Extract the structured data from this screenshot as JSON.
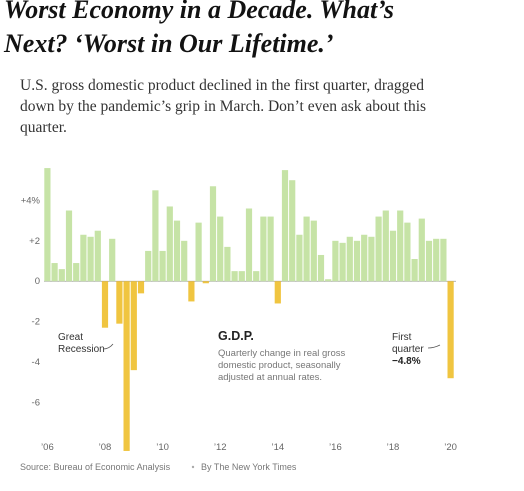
{
  "headline": [
    "Worst Economy in a Decade. What’s",
    "Next? ‘Worst in Our Lifetime.’"
  ],
  "summary": [
    "U.S. gross domestic product declined in the first quarter, dragged",
    "down by the pandemic’s grip in March. Don’t even ask about this",
    "quarter."
  ],
  "chart_data": {
    "type": "bar",
    "title": "G.D.P.",
    "subtitle": [
      "Quarterly change in real gross",
      "domestic product, seasonally",
      "adjusted at annual rates."
    ],
    "annotations": [
      [
        "Great",
        "Recession"
      ],
      [
        "First",
        "quarter"
      ]
    ],
    "categories": [
      "’06",
      null,
      null,
      null,
      null,
      null,
      null,
      null,
      "’08",
      null,
      null,
      null,
      null,
      null,
      null,
      null,
      "’10",
      null,
      null,
      null,
      null,
      null,
      null,
      null,
      "’12",
      null,
      null,
      null,
      null,
      null,
      null,
      null,
      "’14",
      null,
      null,
      null,
      null,
      null,
      null,
      null,
      "’16",
      null,
      null,
      null,
      null,
      null,
      null,
      null,
      "’18",
      null,
      null,
      null,
      null,
      null,
      null,
      null,
      "’20"
    ],
    "values": [
      5.6,
      0.9,
      0.6,
      3.5,
      0.9,
      2.3,
      2.2,
      2.5,
      -2.3,
      2.1,
      -2.1,
      -8.4,
      -4.4,
      -0.6,
      1.5,
      4.5,
      1.5,
      3.7,
      3.0,
      2.0,
      -1.0,
      2.9,
      -0.1,
      4.7,
      3.2,
      1.7,
      0.5,
      0.5,
      3.6,
      0.5,
      3.2,
      3.2,
      -1.1,
      5.5,
      5.0,
      2.3,
      3.2,
      3.0,
      1.3,
      0.1,
      2.0,
      1.9,
      2.2,
      2.0,
      2.3,
      2.2,
      3.2,
      3.5,
      2.5,
      3.5,
      2.9,
      1.1,
      3.1,
      2.0,
      2.1,
      2.1,
      -4.8
    ],
    "value_labels": [
      null,
      null,
      null,
      null,
      null,
      null,
      null,
      null,
      null,
      null,
      null,
      null,
      null,
      null,
      null,
      null,
      null,
      null,
      null,
      null,
      null,
      null,
      null,
      null,
      null,
      null,
      null,
      null,
      null,
      null,
      null,
      null,
      null,
      null,
      null,
      null,
      null,
      null,
      null,
      null,
      null,
      null,
      null,
      null,
      null,
      null,
      null,
      null,
      null,
      null,
      null,
      null,
      null,
      null,
      null,
      null,
      "−4.8%"
    ],
    "positive_color": "#c6e3a6",
    "negative_color": "#f0c540",
    "ylim": [
      -8.6,
      6.0
    ],
    "yticks": [
      {
        "value": 4,
        "label": "+4%"
      },
      {
        "value": 2,
        "label": "+2"
      },
      0,
      -2,
      -4,
      -6
    ],
    "grid": false,
    "source": "Source: Bureau of Economic Analysis",
    "credit": "By The New York Times"
  }
}
